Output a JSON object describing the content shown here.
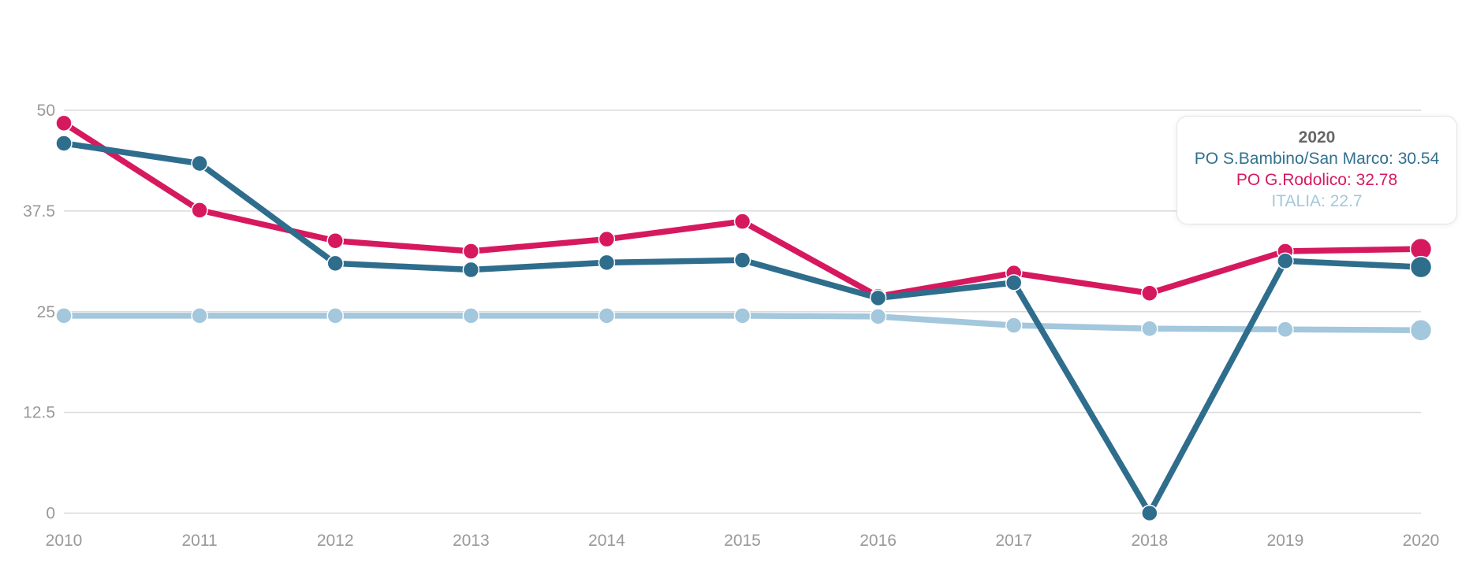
{
  "chart_data": {
    "type": "line",
    "x": [
      "2010",
      "2011",
      "2012",
      "2013",
      "2014",
      "2015",
      "2016",
      "2017",
      "2018",
      "2019",
      "2020"
    ],
    "series": [
      {
        "name": "PO S.Bambino/San Marco",
        "color": "#2f6d8d",
        "values": [
          45.9,
          43.4,
          31.0,
          30.2,
          31.1,
          31.4,
          26.7,
          28.6,
          0,
          31.3,
          30.54
        ]
      },
      {
        "name": "PO G.Rodolico",
        "color": "#d6195f",
        "values": [
          48.4,
          37.6,
          33.8,
          32.5,
          34.0,
          36.2,
          26.9,
          29.8,
          27.3,
          32.5,
          32.78
        ]
      },
      {
        "name": "ITALIA",
        "color": "#a3c7dc",
        "values": [
          24.5,
          24.5,
          24.5,
          24.5,
          24.5,
          24.5,
          24.4,
          23.3,
          22.9,
          22.8,
          22.7
        ]
      }
    ],
    "title": "",
    "xlabel": "",
    "ylabel": "",
    "ylim": [
      0,
      50
    ],
    "yticks": [
      "0",
      "12.5",
      "25",
      "37.5",
      "50"
    ],
    "grid": "horizontal",
    "legend_position": "none",
    "highlighted_x": "2020"
  },
  "axes": {
    "x_labels": [
      "2010",
      "2011",
      "2012",
      "2013",
      "2014",
      "2015",
      "2016",
      "2017",
      "2018",
      "2019",
      "2020"
    ],
    "y_labels": [
      "0",
      "12.5",
      "25",
      "37.5",
      "50"
    ],
    "label_color": "#999999",
    "gridline_color": "#dadada"
  },
  "tooltip": {
    "title": "2020",
    "title_color": "#666666",
    "entries": [
      {
        "label": "PO S.Bambino/San Marco",
        "value": "30.54",
        "text": "PO S.Bambino/San Marco: 30.54",
        "color": "#31708f"
      },
      {
        "label": "PO G.Rodolico",
        "value": "32.78",
        "text": "PO G.Rodolico: 32.78",
        "color": "#d6195f"
      },
      {
        "label": "ITALIA",
        "value": "22.7",
        "text": "ITALIA: 22.7",
        "color": "#a3c7dc"
      }
    ]
  }
}
